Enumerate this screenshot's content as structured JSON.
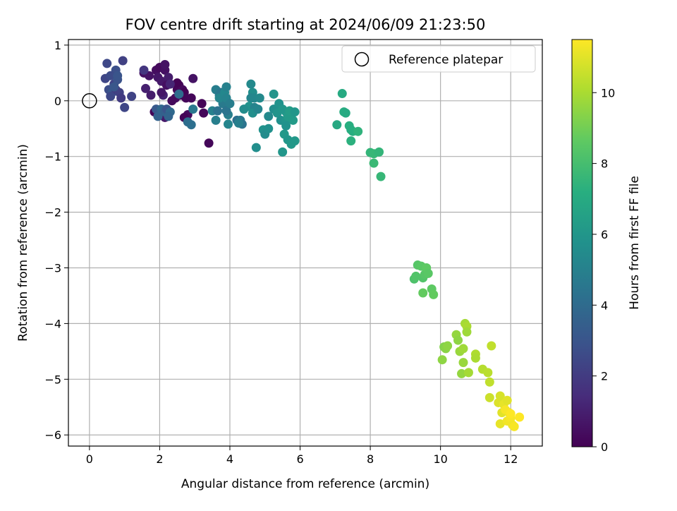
{
  "chart_data": [
    {
      "type": "scatter",
      "title": "FOV centre drift starting at 2024/06/09 21:23:50",
      "xlabel": "Angular distance from reference (arcmin)",
      "ylabel": "Rotation from reference (arcmin)",
      "xlim": [
        -0.6,
        12.9
      ],
      "ylim": [
        -6.2,
        1.1
      ],
      "xticks": [
        0,
        2,
        4,
        6,
        8,
        10,
        12
      ],
      "xtick_labels": [
        "0",
        "2",
        "4",
        "6",
        "8",
        "10",
        "12"
      ],
      "yticks": [
        1,
        0,
        -1,
        -2,
        -3,
        -4,
        -5,
        -6
      ],
      "ytick_labels": [
        "1",
        "0",
        "−1",
        "−2",
        "−3",
        "−4",
        "−5",
        "−6"
      ],
      "grid": true,
      "legend": {
        "location": "top-right",
        "entries": [
          "Reference platepar"
        ]
      },
      "reference_point": {
        "x": 0,
        "y": 0,
        "label": "Reference platepar"
      },
      "colorbar": {
        "label": "Hours from first FF file",
        "colormap": "viridis",
        "range": [
          0,
          11.5
        ],
        "ticks": [
          0,
          2,
          4,
          6,
          8,
          10
        ],
        "tick_labels": [
          "0",
          "2",
          "4",
          "6",
          "8",
          "10"
        ]
      },
      "points": [
        {
          "x": 1.55,
          "y": 0.5,
          "h": 0.5
        },
        {
          "x": 1.7,
          "y": 0.45,
          "h": 0.6
        },
        {
          "x": 1.9,
          "y": 0.55,
          "h": 0.4
        },
        {
          "x": 2.0,
          "y": 0.6,
          "h": 0.3
        },
        {
          "x": 2.15,
          "y": 0.55,
          "h": 0.5
        },
        {
          "x": 2.15,
          "y": 0.65,
          "h": 0.6
        },
        {
          "x": 1.95,
          "y": 0.42,
          "h": 0.7
        },
        {
          "x": 2.05,
          "y": 0.35,
          "h": 0.8
        },
        {
          "x": 2.25,
          "y": 0.42,
          "h": 0.9
        },
        {
          "x": 2.2,
          "y": 0.28,
          "h": 0.5
        },
        {
          "x": 1.6,
          "y": 0.22,
          "h": 1.0
        },
        {
          "x": 1.75,
          "y": 0.1,
          "h": 0.9
        },
        {
          "x": 2.1,
          "y": 0.1,
          "h": 1.1
        },
        {
          "x": 2.05,
          "y": 0.15,
          "h": 0.7
        },
        {
          "x": 2.5,
          "y": 0.2,
          "h": 0.1
        },
        {
          "x": 2.55,
          "y": 0.28,
          "h": 0.2
        },
        {
          "x": 2.65,
          "y": 0.2,
          "h": 0.3
        },
        {
          "x": 2.7,
          "y": 0.15,
          "h": 0.05
        },
        {
          "x": 2.75,
          "y": 0.05,
          "h": 0.2
        },
        {
          "x": 2.6,
          "y": 0.1,
          "h": 0.15
        },
        {
          "x": 2.45,
          "y": 0.05,
          "h": 0.4
        },
        {
          "x": 2.35,
          "y": 0.0,
          "h": 0.3
        },
        {
          "x": 2.9,
          "y": 0.05,
          "h": 0.2
        },
        {
          "x": 2.95,
          "y": 0.4,
          "h": 0.6
        },
        {
          "x": 3.2,
          "y": -0.05,
          "h": 0.1
        },
        {
          "x": 3.25,
          "y": -0.22,
          "h": 0.2
        },
        {
          "x": 2.8,
          "y": -0.25,
          "h": 0.3
        },
        {
          "x": 2.7,
          "y": -0.3,
          "h": 0.1
        },
        {
          "x": 1.85,
          "y": -0.2,
          "h": 0.2
        },
        {
          "x": 2.15,
          "y": -0.3,
          "h": 0.8
        },
        {
          "x": 3.4,
          "y": -0.76,
          "h": 0.2
        },
        {
          "x": 2.5,
          "y": 0.32,
          "h": 0.05
        },
        {
          "x": 2.3,
          "y": 0.3,
          "h": 1.2
        },
        {
          "x": 0.5,
          "y": 0.67,
          "h": 2.5
        },
        {
          "x": 0.95,
          "y": 0.72,
          "h": 2.2
        },
        {
          "x": 0.75,
          "y": 0.55,
          "h": 2.8
        },
        {
          "x": 0.45,
          "y": 0.4,
          "h": 2.4
        },
        {
          "x": 0.6,
          "y": 0.45,
          "h": 2.6
        },
        {
          "x": 0.7,
          "y": 0.3,
          "h": 2.3
        },
        {
          "x": 0.8,
          "y": 0.38,
          "h": 2.9
        },
        {
          "x": 0.8,
          "y": 0.45,
          "h": 3.0
        },
        {
          "x": 0.55,
          "y": 0.2,
          "h": 2.7
        },
        {
          "x": 0.65,
          "y": 0.15,
          "h": 3.2
        },
        {
          "x": 0.75,
          "y": 0.2,
          "h": 2.1
        },
        {
          "x": 0.85,
          "y": 0.15,
          "h": 2.2
        },
        {
          "x": 0.9,
          "y": 0.05,
          "h": 2.0
        },
        {
          "x": 0.6,
          "y": 0.08,
          "h": 2.5
        },
        {
          "x": 1.0,
          "y": -0.12,
          "h": 2.4
        },
        {
          "x": 1.2,
          "y": 0.08,
          "h": 2.3
        },
        {
          "x": 0.7,
          "y": 0.25,
          "h": 3.1
        },
        {
          "x": 1.55,
          "y": 0.55,
          "h": 1.8
        },
        {
          "x": 1.9,
          "y": -0.15,
          "h": 3.2
        },
        {
          "x": 1.95,
          "y": -0.28,
          "h": 3.6
        },
        {
          "x": 2.05,
          "y": -0.15,
          "h": 3.8
        },
        {
          "x": 2.15,
          "y": -0.2,
          "h": 3.5
        },
        {
          "x": 2.2,
          "y": -0.15,
          "h": 3.0
        },
        {
          "x": 2.3,
          "y": -0.2,
          "h": 3.9
        },
        {
          "x": 2.25,
          "y": -0.28,
          "h": 3.7
        },
        {
          "x": 2.55,
          "y": 0.12,
          "h": 4.0
        },
        {
          "x": 2.8,
          "y": -0.38,
          "h": 4.1
        },
        {
          "x": 2.9,
          "y": -0.43,
          "h": 4.2
        },
        {
          "x": 2.95,
          "y": -0.15,
          "h": 4.6
        },
        {
          "x": 3.5,
          "y": -0.18,
          "h": 5.0
        },
        {
          "x": 3.6,
          "y": 0.2,
          "h": 4.8
        },
        {
          "x": 3.7,
          "y": 0.1,
          "h": 4.6
        },
        {
          "x": 3.75,
          "y": 0.15,
          "h": 4.5
        },
        {
          "x": 3.8,
          "y": -0.05,
          "h": 4.7
        },
        {
          "x": 3.65,
          "y": -0.18,
          "h": 4.3
        },
        {
          "x": 3.6,
          "y": -0.35,
          "h": 4.9
        },
        {
          "x": 3.7,
          "y": 0.05,
          "h": 5.2
        },
        {
          "x": 3.85,
          "y": 0.15,
          "h": 5.3
        },
        {
          "x": 3.9,
          "y": 0.25,
          "h": 5.0
        },
        {
          "x": 3.9,
          "y": 0.05,
          "h": 5.1
        },
        {
          "x": 3.95,
          "y": -0.25,
          "h": 4.9
        },
        {
          "x": 3.9,
          "y": -0.18,
          "h": 4.4
        },
        {
          "x": 4.0,
          "y": -0.05,
          "h": 4.8
        },
        {
          "x": 3.95,
          "y": -0.42,
          "h": 5.2
        },
        {
          "x": 4.2,
          "y": -0.35,
          "h": 4.2
        },
        {
          "x": 4.3,
          "y": -0.35,
          "h": 4.6
        },
        {
          "x": 4.35,
          "y": -0.42,
          "h": 4.4
        },
        {
          "x": 4.25,
          "y": -0.4,
          "h": 4.9
        },
        {
          "x": 4.6,
          "y": 0.3,
          "h": 5.4
        },
        {
          "x": 4.65,
          "y": 0.15,
          "h": 5.6
        },
        {
          "x": 4.6,
          "y": 0.05,
          "h": 5.2
        },
        {
          "x": 4.7,
          "y": 0.05,
          "h": 5.3
        },
        {
          "x": 4.55,
          "y": -0.1,
          "h": 5.8
        },
        {
          "x": 4.4,
          "y": -0.15,
          "h": 5.5
        },
        {
          "x": 4.7,
          "y": -0.12,
          "h": 5.1
        },
        {
          "x": 4.65,
          "y": -0.22,
          "h": 5.6
        },
        {
          "x": 4.8,
          "y": -0.15,
          "h": 5.2
        },
        {
          "x": 4.85,
          "y": 0.05,
          "h": 5.4
        },
        {
          "x": 4.75,
          "y": -0.84,
          "h": 5.6
        },
        {
          "x": 4.95,
          "y": -0.52,
          "h": 5.8
        },
        {
          "x": 5.0,
          "y": -0.6,
          "h": 5.5
        },
        {
          "x": 5.1,
          "y": -0.5,
          "h": 5.7
        },
        {
          "x": 5.1,
          "y": -0.28,
          "h": 5.4
        },
        {
          "x": 5.25,
          "y": 0.12,
          "h": 5.9
        },
        {
          "x": 5.25,
          "y": -0.15,
          "h": 5.6
        },
        {
          "x": 5.35,
          "y": -0.22,
          "h": 5.9
        },
        {
          "x": 5.4,
          "y": -0.05,
          "h": 5.8
        },
        {
          "x": 5.5,
          "y": -0.15,
          "h": 6.0
        },
        {
          "x": 5.45,
          "y": -0.35,
          "h": 5.7
        },
        {
          "x": 5.6,
          "y": -0.2,
          "h": 6.0
        },
        {
          "x": 5.55,
          "y": -0.6,
          "h": 6.1
        },
        {
          "x": 5.6,
          "y": -0.35,
          "h": 5.9
        },
        {
          "x": 5.65,
          "y": -0.28,
          "h": 6.2
        },
        {
          "x": 5.65,
          "y": -0.7,
          "h": 6.0
        },
        {
          "x": 5.7,
          "y": -0.18,
          "h": 6.3
        },
        {
          "x": 5.75,
          "y": -0.78,
          "h": 6.1
        },
        {
          "x": 5.8,
          "y": -0.35,
          "h": 6.2
        },
        {
          "x": 5.85,
          "y": -0.2,
          "h": 6.0
        },
        {
          "x": 5.85,
          "y": -0.72,
          "h": 6.1
        },
        {
          "x": 5.5,
          "y": -0.92,
          "h": 6.0
        },
        {
          "x": 5.6,
          "y": -0.45,
          "h": 5.8
        },
        {
          "x": 7.05,
          "y": -0.43,
          "h": 6.9
        },
        {
          "x": 7.2,
          "y": 0.13,
          "h": 7.0
        },
        {
          "x": 7.25,
          "y": -0.2,
          "h": 7.1
        },
        {
          "x": 7.3,
          "y": -0.22,
          "h": 7.0
        },
        {
          "x": 7.4,
          "y": -0.45,
          "h": 7.2
        },
        {
          "x": 7.45,
          "y": -0.52,
          "h": 7.1
        },
        {
          "x": 7.5,
          "y": -0.55,
          "h": 7.2
        },
        {
          "x": 7.45,
          "y": -0.72,
          "h": 7.3
        },
        {
          "x": 7.65,
          "y": -0.55,
          "h": 7.4
        },
        {
          "x": 8.0,
          "y": -0.93,
          "h": 7.5
        },
        {
          "x": 8.1,
          "y": -0.95,
          "h": 7.6
        },
        {
          "x": 8.25,
          "y": -0.92,
          "h": 7.5
        },
        {
          "x": 8.1,
          "y": -1.12,
          "h": 7.7
        },
        {
          "x": 8.3,
          "y": -1.36,
          "h": 7.6
        },
        {
          "x": 9.25,
          "y": -3.2,
          "h": 8.2
        },
        {
          "x": 9.3,
          "y": -3.15,
          "h": 8.3
        },
        {
          "x": 9.35,
          "y": -2.95,
          "h": 8.4
        },
        {
          "x": 9.45,
          "y": -2.97,
          "h": 8.5
        },
        {
          "x": 9.5,
          "y": -3.18,
          "h": 8.3
        },
        {
          "x": 9.55,
          "y": -3.12,
          "h": 8.4
        },
        {
          "x": 9.6,
          "y": -3.0,
          "h": 8.6
        },
        {
          "x": 9.65,
          "y": -3.1,
          "h": 8.5
        },
        {
          "x": 9.5,
          "y": -3.45,
          "h": 8.7
        },
        {
          "x": 9.75,
          "y": -3.38,
          "h": 8.6
        },
        {
          "x": 9.8,
          "y": -3.48,
          "h": 8.7
        },
        {
          "x": 10.05,
          "y": -4.65,
          "h": 9.5
        },
        {
          "x": 10.1,
          "y": -4.42,
          "h": 9.3
        },
        {
          "x": 10.15,
          "y": -4.45,
          "h": 9.4
        },
        {
          "x": 10.2,
          "y": -4.4,
          "h": 9.5
        },
        {
          "x": 10.45,
          "y": -4.2,
          "h": 9.6
        },
        {
          "x": 10.5,
          "y": -4.3,
          "h": 9.5
        },
        {
          "x": 10.55,
          "y": -4.5,
          "h": 9.7
        },
        {
          "x": 10.6,
          "y": -4.9,
          "h": 9.6
        },
        {
          "x": 10.65,
          "y": -4.45,
          "h": 9.8
        },
        {
          "x": 10.65,
          "y": -4.7,
          "h": 9.7
        },
        {
          "x": 10.7,
          "y": -4.0,
          "h": 9.9
        },
        {
          "x": 10.75,
          "y": -4.05,
          "h": 10.0
        },
        {
          "x": 10.75,
          "y": -4.15,
          "h": 9.8
        },
        {
          "x": 10.8,
          "y": -4.88,
          "h": 9.9
        },
        {
          "x": 11.0,
          "y": -4.55,
          "h": 10.1
        },
        {
          "x": 11.0,
          "y": -4.62,
          "h": 10.0
        },
        {
          "x": 11.2,
          "y": -4.82,
          "h": 10.2
        },
        {
          "x": 11.35,
          "y": -4.88,
          "h": 10.3
        },
        {
          "x": 11.4,
          "y": -5.05,
          "h": 10.4
        },
        {
          "x": 11.45,
          "y": -4.4,
          "h": 10.4
        },
        {
          "x": 11.4,
          "y": -5.33,
          "h": 10.6
        },
        {
          "x": 11.65,
          "y": -5.42,
          "h": 10.9
        },
        {
          "x": 11.7,
          "y": -5.3,
          "h": 10.8
        },
        {
          "x": 11.75,
          "y": -5.6,
          "h": 11.0
        },
        {
          "x": 11.8,
          "y": -5.45,
          "h": 11.1
        },
        {
          "x": 11.9,
          "y": -5.38,
          "h": 11.0
        },
        {
          "x": 11.95,
          "y": -5.6,
          "h": 11.2
        },
        {
          "x": 11.7,
          "y": -5.8,
          "h": 11.1
        },
        {
          "x": 11.9,
          "y": -5.75,
          "h": 11.3
        },
        {
          "x": 12.0,
          "y": -5.7,
          "h": 11.4
        },
        {
          "x": 12.05,
          "y": -5.82,
          "h": 11.3
        },
        {
          "x": 11.85,
          "y": -5.55,
          "h": 11.4
        },
        {
          "x": 12.0,
          "y": -5.62,
          "h": 11.5
        },
        {
          "x": 12.25,
          "y": -5.68,
          "h": 11.5
        },
        {
          "x": 12.1,
          "y": -5.85,
          "h": 11.4
        }
      ]
    }
  ]
}
